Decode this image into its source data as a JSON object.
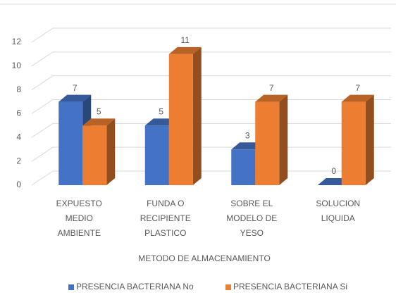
{
  "chart_data": {
    "type": "bar3d",
    "x_label": "METODO DE ALMACENAMIENTO",
    "categories": [
      [
        "EXPUESTO",
        "MEDIO",
        "AMBIENTE"
      ],
      [
        "FUNDA O",
        "RECIPIENTE",
        "PLASTICO"
      ],
      [
        "SOBRE EL",
        "MODELO DE",
        "YESO"
      ],
      [
        "SOLUCION",
        "LIQUIDA"
      ]
    ],
    "series": [
      {
        "name": "PRESENCIA BACTERIANA No",
        "color": "#4472c4",
        "values": [
          7,
          5,
          3,
          0
        ]
      },
      {
        "name": "PRESENCIA BACTERIANA Si",
        "color": "#ed7d31",
        "values": [
          5,
          11,
          7,
          7
        ]
      }
    ],
    "ylim": [
      0,
      12
    ],
    "yticks": [
      0,
      2,
      4,
      6,
      8,
      10,
      12
    ],
    "grid": true,
    "legend": "bottom"
  }
}
